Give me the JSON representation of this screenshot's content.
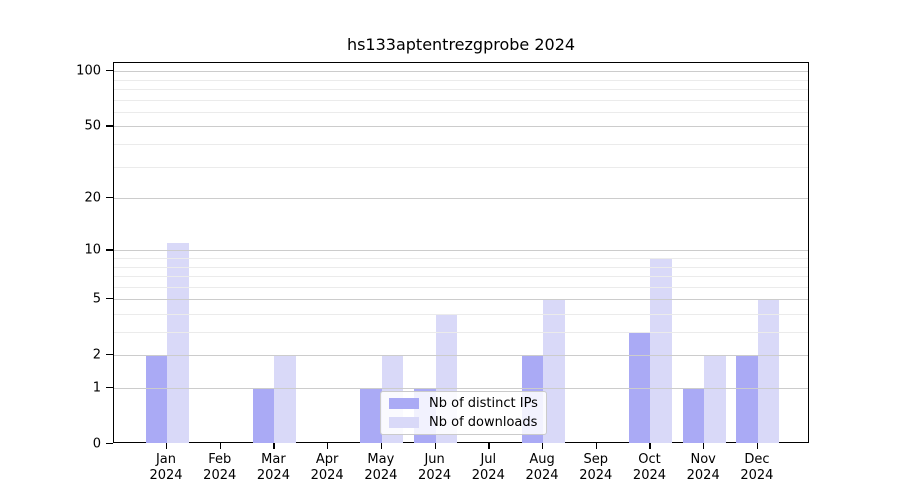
{
  "chart_data": {
    "type": "bar",
    "title": "hs133aptentrezgprobe 2024",
    "year": "2024",
    "categories": [
      "Jan",
      "Feb",
      "Mar",
      "Apr",
      "May",
      "Jun",
      "Jul",
      "Aug",
      "Sep",
      "Oct",
      "Nov",
      "Dec"
    ],
    "series": [
      {
        "name": "Nb of distinct IPs",
        "color": "#aaaaf5",
        "values": [
          2,
          0,
          1,
          0,
          1,
          1,
          0,
          2,
          0,
          3,
          1,
          2
        ]
      },
      {
        "name": "Nb of downloads",
        "color": "#d9d9f8",
        "values": [
          11,
          0,
          2,
          0,
          2,
          4,
          0,
          5,
          0,
          9,
          2,
          5
        ]
      }
    ],
    "y_axis": {
      "scale": "log1p",
      "major_ticks": [
        0,
        1,
        2,
        5,
        10,
        20,
        50,
        100
      ],
      "minor_ticks": [
        3,
        4,
        6,
        7,
        8,
        9,
        30,
        40,
        60,
        70,
        80,
        90
      ],
      "range": [
        0,
        111
      ]
    },
    "xlabel": "",
    "ylabel": "",
    "legend": {
      "position": "lower-center",
      "entries": [
        "Nb of distinct IPs",
        "Nb of downloads"
      ]
    },
    "grid": {
      "on": true,
      "major_color": "#cccccc",
      "minor_color": "#ebebeb"
    },
    "colors": {
      "axis": "#000000",
      "text": "#000000",
      "background": "#ffffff"
    }
  }
}
